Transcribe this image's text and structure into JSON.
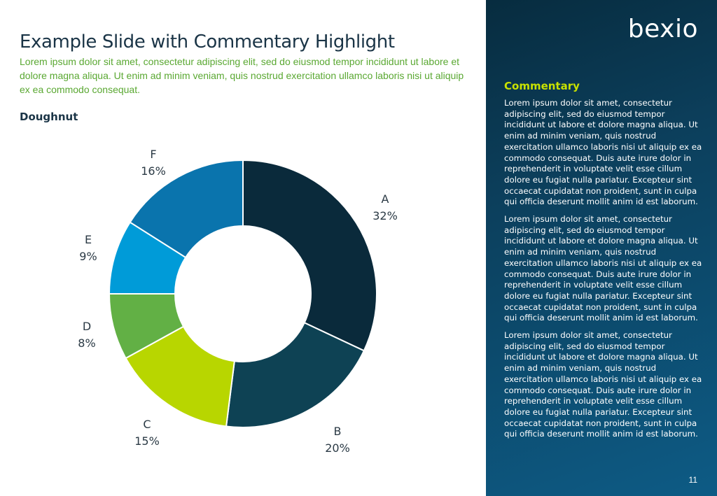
{
  "slide": {
    "title": "Example Slide with Commentary Highlight",
    "subtitle": "Lorem ipsum dolor sit amet, consectetur adipiscing elit, sed do eiusmod tempor incididunt ut labore et dolore magna aliqua. Ut enim ad minim veniam, quis nostrud exercitation ullamco laboris nisi ut aliquip ex ea commodo consequat.",
    "chart_heading": "Doughnut",
    "page_number": "11"
  },
  "brand": {
    "logo_text": "bexio",
    "accent_color": "#c8e100",
    "panel_color": "#0c3f5c"
  },
  "commentary": {
    "heading": "Commentary",
    "paragraphs": [
      "Lorem ipsum dolor sit amet, consectetur adipiscing elit, sed do eiusmod tempor incididunt ut labore et dolore magna aliqua. Ut enim ad minim veniam, quis nostrud exercitation ullamco laboris nisi ut aliquip ex ea commodo consequat. Duis aute irure dolor in reprehenderit in voluptate velit esse cillum dolore eu fugiat nulla pariatur. Excepteur sint occaecat cupidatat non proident, sunt in culpa qui officia deserunt mollit anim id est laborum.",
      "Lorem ipsum dolor sit amet, consectetur adipiscing elit, sed do eiusmod tempor incididunt ut labore et dolore magna aliqua. Ut enim ad minim veniam, quis nostrud exercitation ullamco laboris nisi ut aliquip ex ea commodo consequat. Duis aute irure dolor in reprehenderit in voluptate velit esse cillum dolore eu fugiat nulla pariatur. Excepteur sint occaecat cupidatat non proident, sunt in culpa qui officia deserunt mollit anim id est laborum.",
      "Lorem ipsum dolor sit amet, consectetur adipiscing elit, sed do eiusmod tempor incididunt ut labore et dolore magna aliqua. Ut enim ad minim veniam, quis nostrud exercitation ullamco laboris nisi ut aliquip ex ea commodo consequat. Duis aute irure dolor in reprehenderit in voluptate velit esse cillum dolore eu fugiat nulla pariatur. Excepteur sint occaecat cupidatat non proident, sunt in culpa qui officia deserunt mollit anim id est laborum."
    ]
  },
  "chart_data": {
    "type": "pie",
    "subtype": "doughnut",
    "title": "Doughnut",
    "categories": [
      "A",
      "B",
      "C",
      "D",
      "E",
      "F"
    ],
    "values": [
      32,
      20,
      15,
      8,
      9,
      16
    ],
    "value_labels": [
      "32%",
      "20%",
      "15%",
      "8%",
      "9%",
      "16%"
    ],
    "colors": [
      "#0a2a3b",
      "#0e4254",
      "#b8d600",
      "#62b045",
      "#009bd8",
      "#0a74ad"
    ],
    "legend": "none",
    "start": "top",
    "direction": "clockwise"
  }
}
